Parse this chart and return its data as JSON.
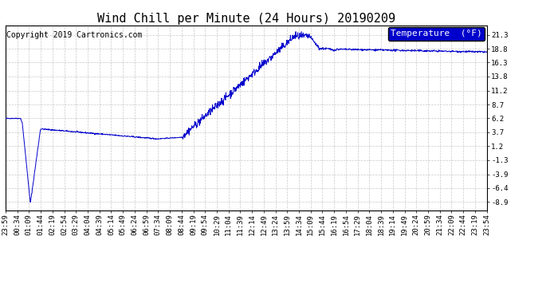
{
  "title": "Wind Chill per Minute (24 Hours) 20190209",
  "copyright_text": "Copyright 2019 Cartronics.com",
  "legend_label": "Temperature  (°F)",
  "legend_bg": "#0000cc",
  "legend_fg": "#ffffff",
  "line_color": "#0000cc",
  "bg_color": "#ffffff",
  "plot_bg_color": "#ffffff",
  "grid_color": "#bbbbbb",
  "yticks": [
    21.3,
    18.8,
    16.3,
    13.8,
    11.2,
    8.7,
    6.2,
    3.7,
    1.2,
    -1.3,
    -3.9,
    -6.4,
    -8.9
  ],
  "ylim": [
    -10.5,
    23.0
  ],
  "xtick_labels": [
    "23:59",
    "00:34",
    "01:09",
    "01:44",
    "02:19",
    "02:54",
    "03:29",
    "04:04",
    "04:39",
    "05:14",
    "05:49",
    "06:24",
    "06:59",
    "07:34",
    "08:09",
    "08:44",
    "09:19",
    "09:54",
    "10:29",
    "11:04",
    "11:39",
    "12:14",
    "12:49",
    "13:24",
    "13:59",
    "14:34",
    "15:09",
    "15:44",
    "16:19",
    "16:54",
    "17:29",
    "18:04",
    "18:39",
    "19:14",
    "19:49",
    "20:24",
    "20:59",
    "21:34",
    "22:09",
    "22:44",
    "23:19",
    "23:54"
  ],
  "title_fontsize": 11,
  "copyright_fontsize": 7,
  "tick_fontsize": 6.5,
  "legend_fontsize": 8
}
